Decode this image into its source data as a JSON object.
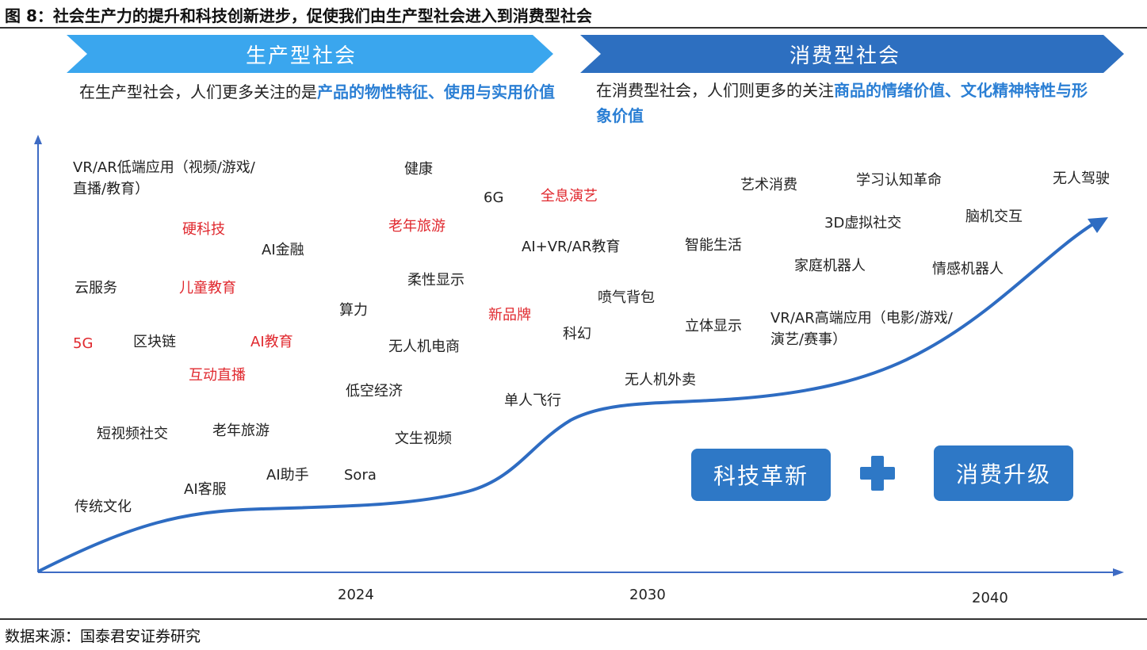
{
  "figure": {
    "title": "图 8：社会生产力的提升和科技创新进步，促使我们由生产型社会进入到消费型社会",
    "source": "数据来源：国泰君安证券研究"
  },
  "phases": {
    "production": {
      "label": "生产型社会",
      "desc_prefix": "在生产型社会，人们更多关注的是",
      "desc_highlight": "产品的物性特征、使用与实用价值",
      "color": "#3aa6ee"
    },
    "consumption": {
      "label": "消费型社会",
      "desc_prefix": "在消费型社会，人们则更多的关注",
      "desc_highlight": "商品的情绪价值、文化精神特性与形象价值",
      "color": "#2d6fc0"
    }
  },
  "terms": [
    {
      "text": "VR/AR低端应用（视频/游戏/直播/教育）",
      "red": false
    },
    {
      "text": "健康",
      "red": false
    },
    {
      "text": "6G",
      "red": false
    },
    {
      "text": "全息演艺",
      "red": true
    },
    {
      "text": "硬科技",
      "red": true
    },
    {
      "text": "老年旅游",
      "red": true
    },
    {
      "text": "AI金融",
      "red": false
    },
    {
      "text": "AI+VR/AR教育",
      "red": false
    },
    {
      "text": "云服务",
      "red": false
    },
    {
      "text": "儿童教育",
      "red": true
    },
    {
      "text": "柔性显示",
      "red": false
    },
    {
      "text": "算力",
      "red": false
    },
    {
      "text": "新品牌",
      "red": true
    },
    {
      "text": "5G",
      "red": true
    },
    {
      "text": "区块链",
      "red": false
    },
    {
      "text": "AI教育",
      "red": true
    },
    {
      "text": "无人机电商",
      "red": false
    },
    {
      "text": "互动直播",
      "red": true
    },
    {
      "text": "低空经济",
      "red": false
    },
    {
      "text": "单人飞行",
      "red": false
    },
    {
      "text": "短视频社交",
      "red": false
    },
    {
      "text": "老年旅游",
      "red": false
    },
    {
      "text": "文生视频",
      "red": false
    },
    {
      "text": "AI助手",
      "red": false
    },
    {
      "text": "Sora",
      "red": false
    },
    {
      "text": "AI客服",
      "red": false
    },
    {
      "text": "传统文化",
      "red": false
    },
    {
      "text": "喷气背包",
      "red": false
    },
    {
      "text": "科幻",
      "red": false
    },
    {
      "text": "无人机外卖",
      "red": false
    },
    {
      "text": "艺术消费",
      "red": false
    },
    {
      "text": "学习认知革命",
      "red": false
    },
    {
      "text": "无人驾驶",
      "red": false
    },
    {
      "text": "3D虚拟社交",
      "red": false
    },
    {
      "text": "脑机交互",
      "red": false
    },
    {
      "text": "智能生活",
      "red": false
    },
    {
      "text": "家庭机器人",
      "red": false
    },
    {
      "text": "情感机器人",
      "red": false
    },
    {
      "text": "立体显示",
      "red": false
    },
    {
      "text": "VR/AR高端应用（电影/游戏/演艺/赛事）",
      "red": false
    }
  ],
  "badges": {
    "left": "科技革新",
    "right": "消费升级"
  },
  "years": [
    "2024",
    "2030",
    "2040"
  ],
  "colors": {
    "curve": "#2e6cc2",
    "badge": "#2e78c6",
    "axis": "#3d6bc4",
    "red_term": "#e0282e",
    "highlight": "#2b7fd4"
  }
}
